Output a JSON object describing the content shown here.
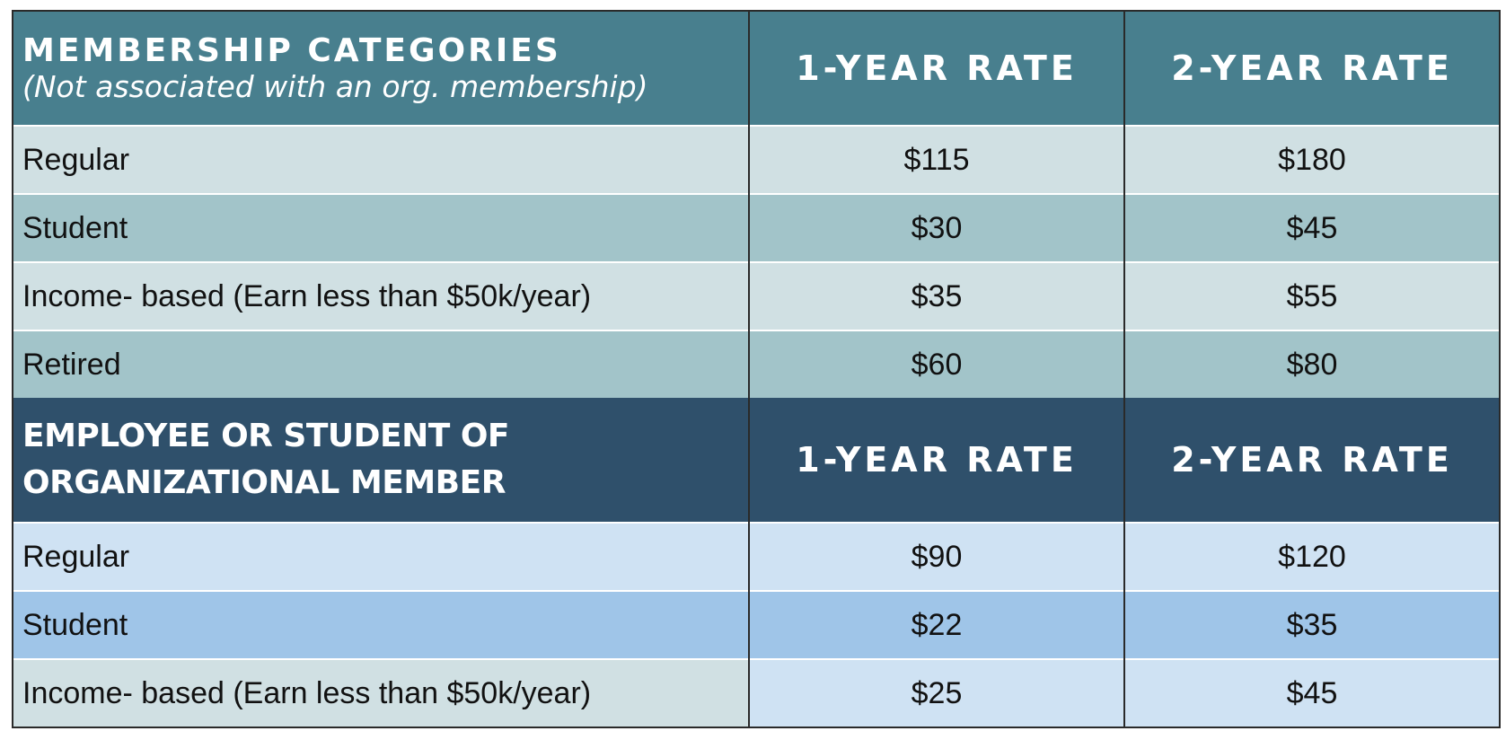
{
  "sections": [
    {
      "header": {
        "title": "MEMBERSHIP CATEGORIES",
        "subtitle": "(Not associated with an org. membership)",
        "col1": "1-YEAR RATE",
        "col2": "2-YEAR RATE"
      },
      "rows": [
        [
          "Regular",
          "$115",
          "$180"
        ],
        [
          "Student",
          "$30",
          "$45"
        ],
        [
          "Income- based (Earn less than $50k/year)",
          "$35",
          "$55"
        ],
        [
          "Retired",
          "$60",
          "$80"
        ]
      ]
    },
    {
      "header": {
        "title": "EMPLOYEE OR STUDENT OF ORGANIZATIONAL MEMBER",
        "col1": "1-YEAR RATE",
        "col2": "2-YEAR RATE"
      },
      "rows": [
        [
          "Regular",
          "$90",
          "$120"
        ],
        [
          "Student",
          "$22",
          "$35"
        ],
        [
          "Income- based (Earn less than $50k/year)",
          "$25",
          "$45"
        ]
      ]
    }
  ]
}
